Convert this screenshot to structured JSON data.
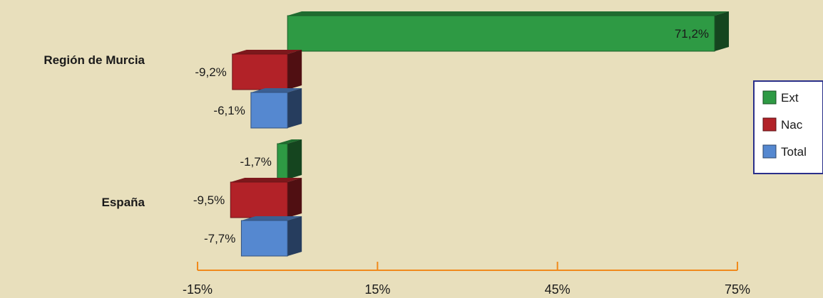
{
  "chart_data": {
    "type": "bar",
    "orientation": "horizontal",
    "categories": [
      "Región de Murcia",
      "España"
    ],
    "series": [
      {
        "name": "Ext",
        "color": "#2e9a44",
        "values": [
          71.2,
          -1.7
        ],
        "labels": [
          "71,2%",
          "-1,7%"
        ]
      },
      {
        "name": "Nac",
        "color": "#b22228",
        "values": [
          -9.2,
          -9.5
        ],
        "labels": [
          "-9,2%",
          "-9,5%"
        ]
      },
      {
        "name": "Total",
        "color": "#5588d0",
        "values": [
          -6.1,
          -7.7
        ],
        "labels": [
          "-6,1%",
          "-7,7%"
        ]
      }
    ],
    "xlim": [
      -15,
      75
    ],
    "xticks": [
      -15,
      15,
      45,
      75
    ],
    "xtick_labels": [
      "-15%",
      "15%",
      "45%",
      "75%"
    ],
    "legend": {
      "placement": "right",
      "entries": [
        "Ext",
        "Nac",
        "Total"
      ]
    },
    "grid": false,
    "style": "3d"
  }
}
